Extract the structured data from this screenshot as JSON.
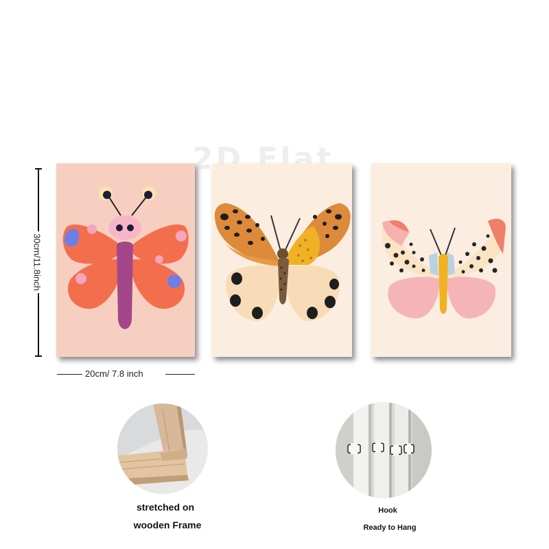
{
  "watermark": "2D Flat",
  "dimensions": {
    "height_label": "30cm/11.8inch",
    "width_label": "20cm/ 7.8 inch"
  },
  "features": {
    "frame_caption_line1": "stretched on",
    "frame_caption_line2": "wooden Frame",
    "hook_caption": "Hook",
    "hang_caption": "Ready to Hang"
  },
  "palette": {
    "panel1_bg": "#f7cfc0",
    "panel2_bg": "#fbeee0",
    "panel3_bg": "#fbede0",
    "coral": "#f36e4d",
    "purple": "#a3478a",
    "orange": "#dd8a3a",
    "pink": "#f5b5b8",
    "yellow": "#f0b224"
  }
}
